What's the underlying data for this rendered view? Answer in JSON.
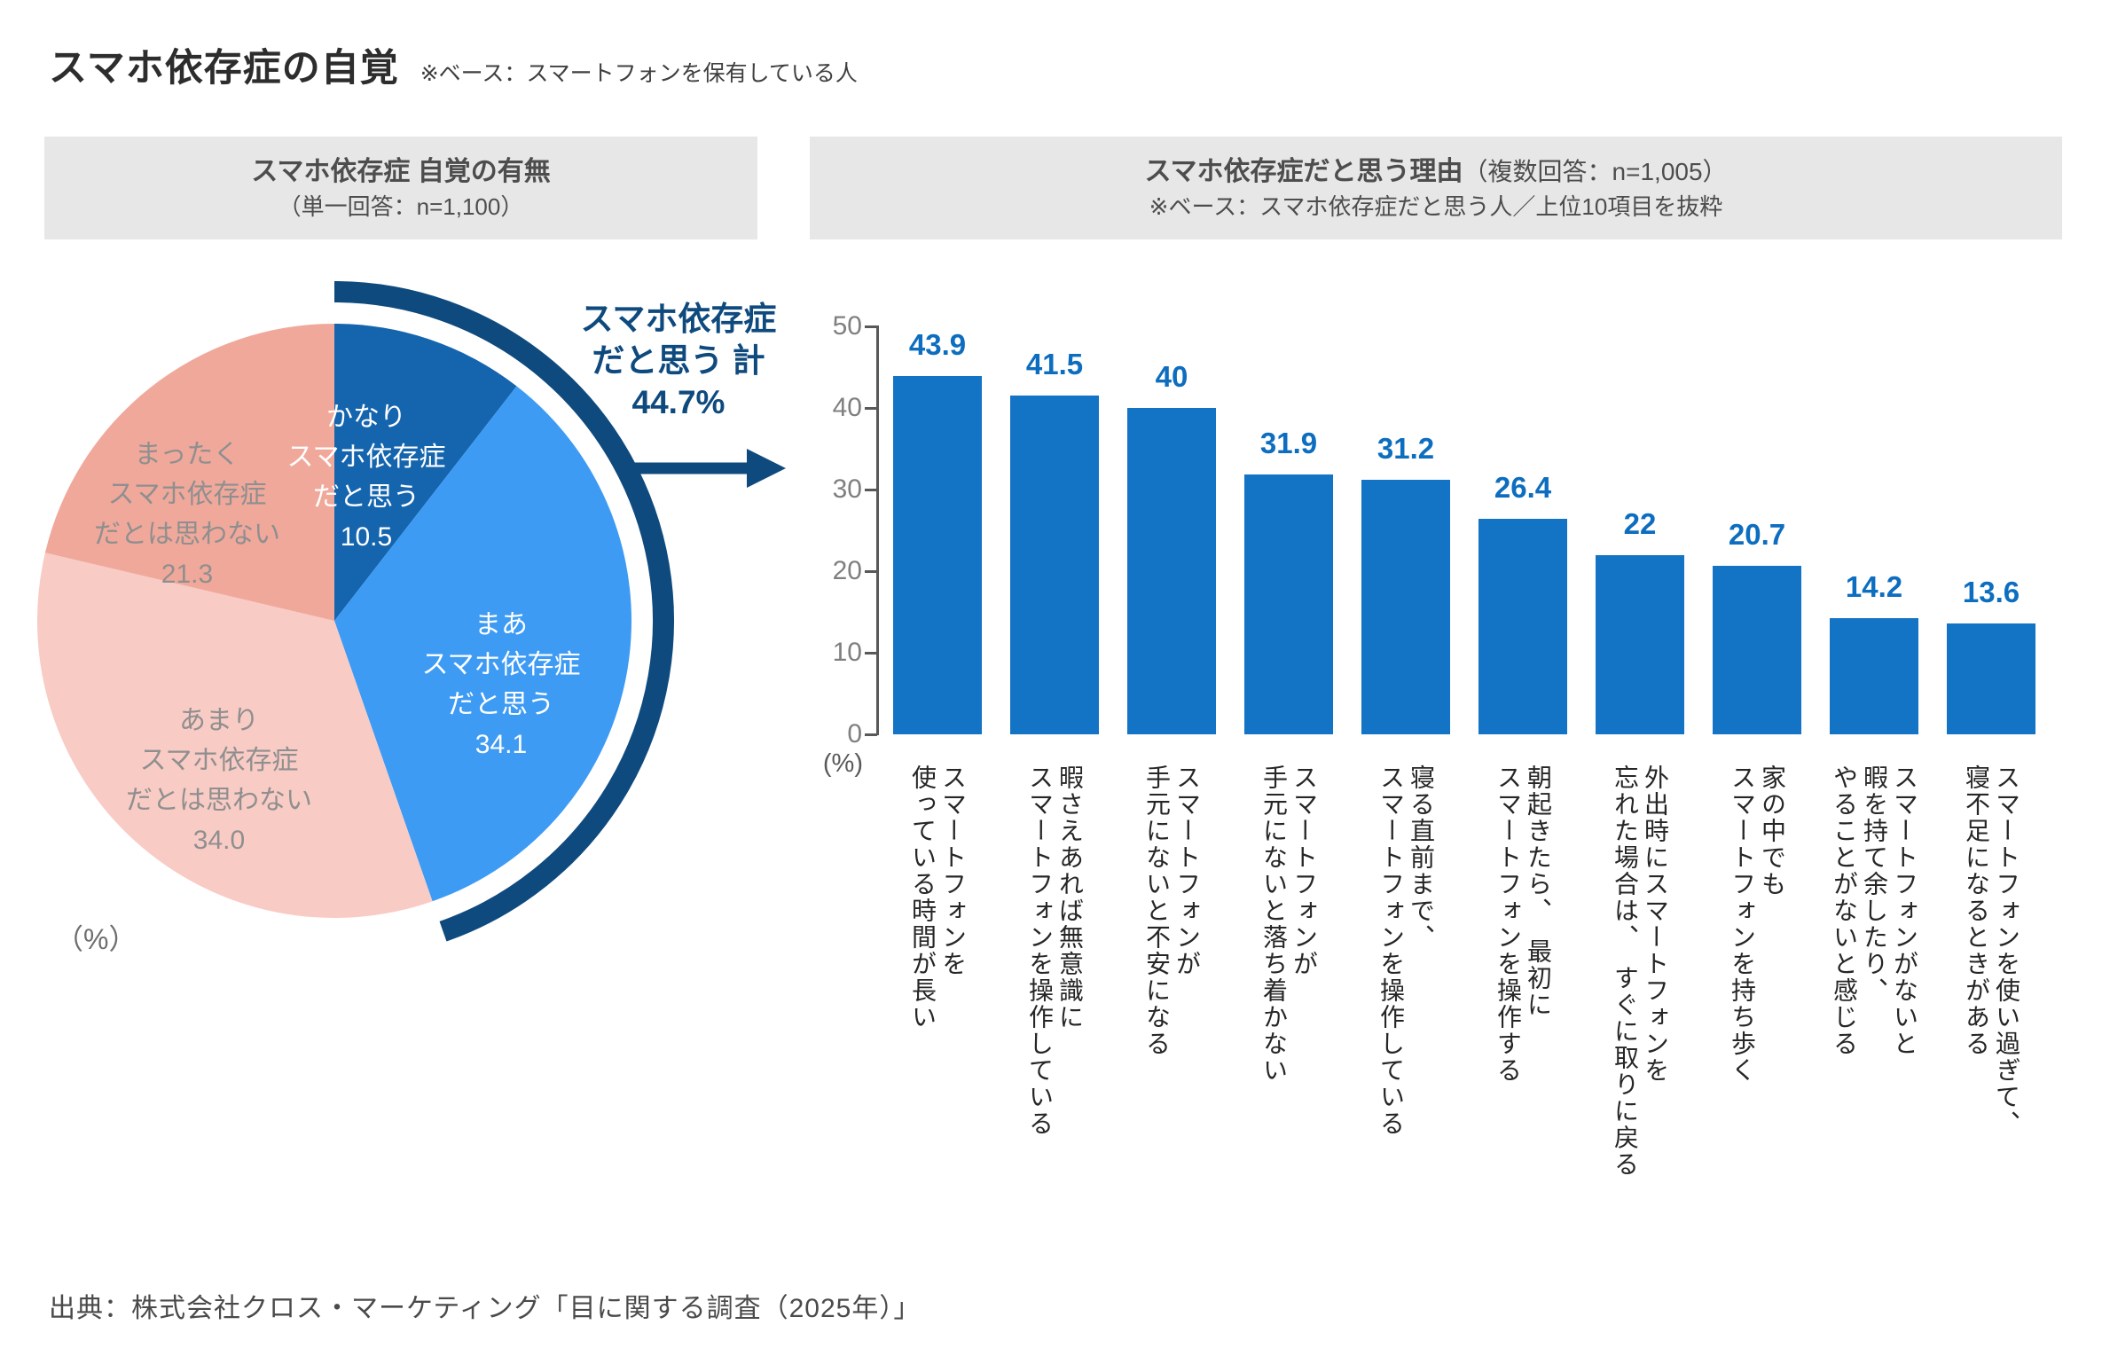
{
  "page": {
    "title": "スマホ依存症の自覚",
    "title_note": "※ベース：スマートフォンを保有している人",
    "source": "出典：株式会社クロス・マーケティング「目に関する調査（2025年）」"
  },
  "panels": {
    "pie_header": {
      "line1": "スマホ依存症 自覚の有無",
      "line2": "（単一回答：n=1,100）"
    },
    "bar_header": {
      "line1_bold": "スマホ依存症だと思う理由",
      "line1_normal": "（複数回答：n=1,005）",
      "line2": "※ベース：スマホ依存症だと思う人／上位10項目を抜粋"
    }
  },
  "chart_data": [
    {
      "type": "pie",
      "title": "スマホ依存症 自覚の有無（単一回答：n=1,100）",
      "unit_label": "（%）",
      "start": "12時方向から時計回り",
      "segments": [
        {
          "label": "かなり\nスマホ依存症\nだと思う",
          "value": 10.5,
          "value_label": "10.5",
          "color": "#1565AE",
          "text_color": "#FFFFFF"
        },
        {
          "label": "まあ\nスマホ依存症\nだと思う",
          "value": 34.1,
          "value_label": "34.1",
          "color": "#3E9BF4",
          "text_color": "#FFFFFF"
        },
        {
          "label": "あまり\nスマホ依存症\nだとは思わない",
          "value": 34.0,
          "value_label": "34.0",
          "color": "#F9CBC5",
          "text_color": "#8F8F8F"
        },
        {
          "label": "まったく\nスマホ依存症\nだとは思わない",
          "value": 21.3,
          "value_label": "21.3",
          "color": "#F0A89B",
          "text_color": "#8F8F8F"
        }
      ],
      "callout": {
        "text": "スマホ依存症\nだと思う 計\n44.7%",
        "value": 44.7,
        "color": "#0F4A7E",
        "arc_covers": "かなり＋まあ"
      }
    },
    {
      "type": "bar",
      "unit_label": "(%)",
      "ylim": [
        0,
        50
      ],
      "yticks": [
        0,
        10,
        20,
        30,
        40,
        50
      ],
      "grid": false,
      "bar_color": "#1373C4",
      "value_label_color": "#0D6DBF",
      "categories": [
        "スマートフォンを\n使っている時間が長い",
        "暇さえあれば無意識に\nスマートフォンを操作している",
        "スマートフォンが\n手元にないと不安になる",
        "スマートフォンが\n手元にないと落ち着かない",
        "寝る直前まで、\nスマートフォンを操作している",
        "朝起きたら、　最初に\nスマートフォンを操作する",
        "外出時にスマートフォンを\n忘れた場合は、　すぐに取りに戻る",
        "家の中でも\nスマートフォンを持ち歩く",
        "スマートフォンがないと\n暇を持て余したり、\nやることがないと感じる",
        "スマートフォンを使い過ぎて、\n寝不足になるときがある"
      ],
      "values": [
        43.9,
        41.5,
        40,
        31.9,
        31.2,
        26.4,
        22,
        20.7,
        14.2,
        13.6
      ]
    }
  ]
}
